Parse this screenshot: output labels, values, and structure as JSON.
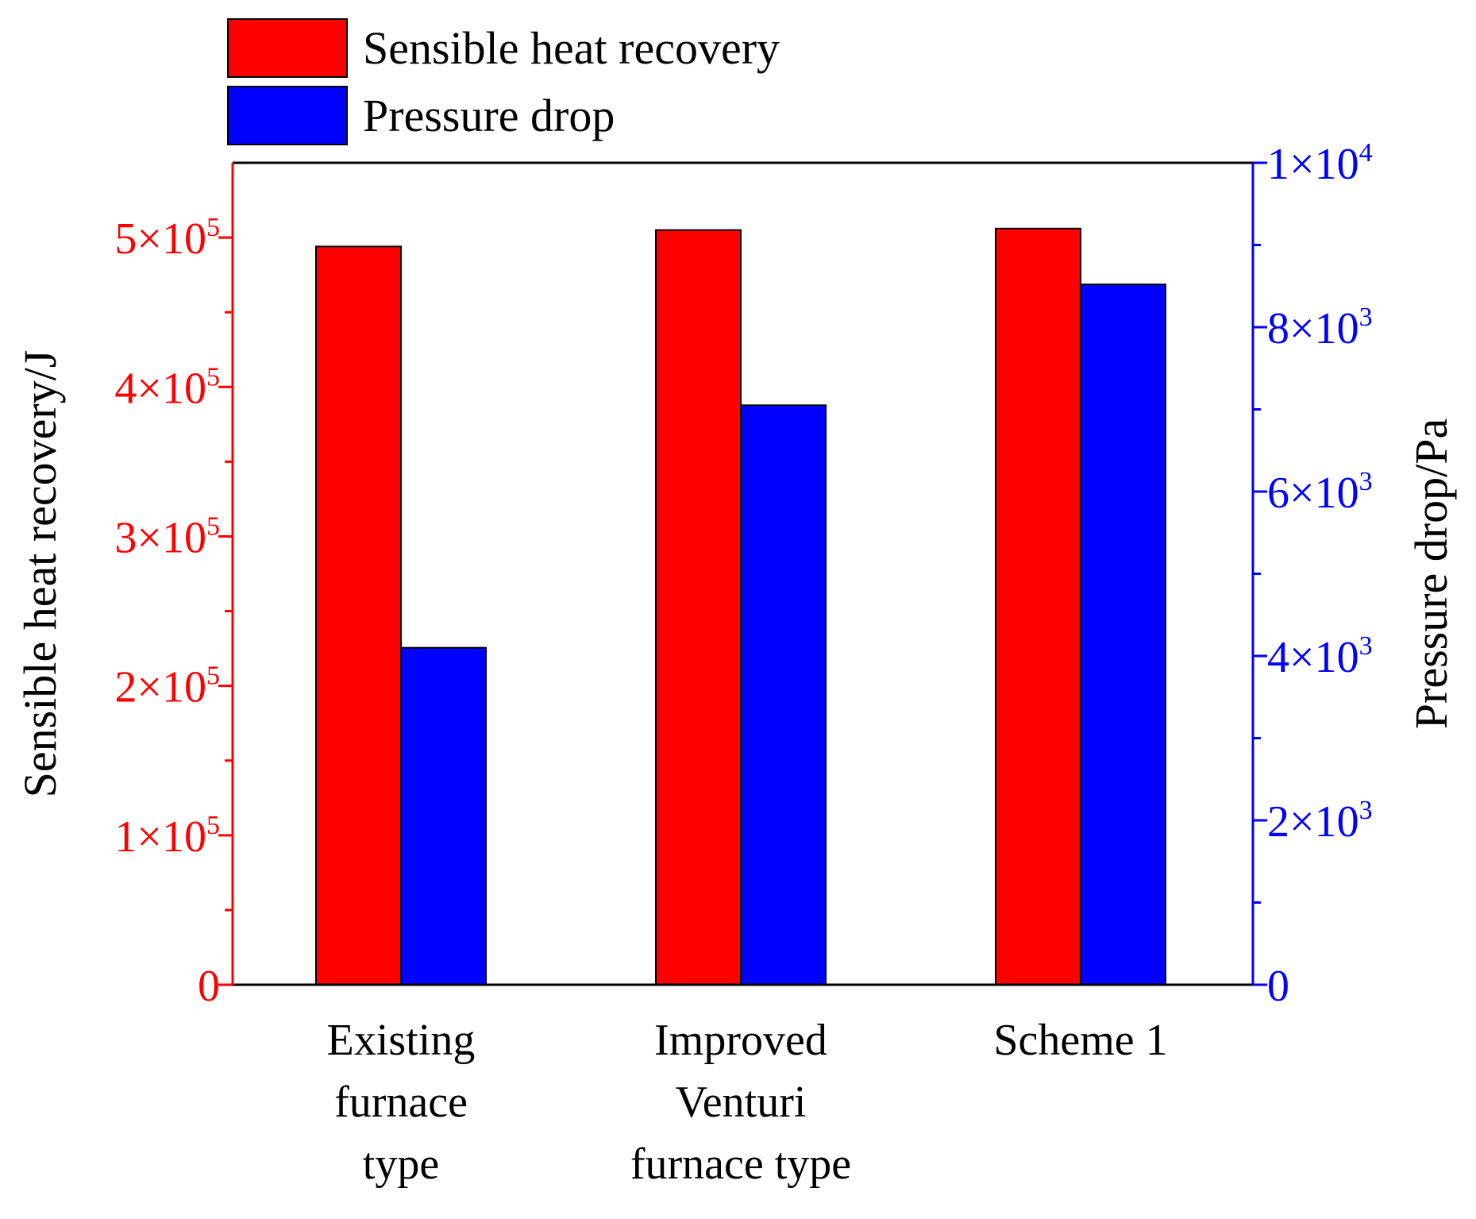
{
  "chart_data": {
    "type": "bar",
    "title": "",
    "categories": [
      [
        "Existing",
        "furnace",
        "type"
      ],
      [
        "Improved",
        "Venturi",
        "furnace type"
      ],
      [
        "Scheme 1"
      ]
    ],
    "series": [
      {
        "name": "Sensible heat recovery",
        "axis": "left",
        "color": "#ff0000",
        "values": [
          494000,
          505000,
          506000
        ]
      },
      {
        "name": "Pressure drop",
        "axis": "right",
        "color": "#0000ff",
        "values": [
          4100,
          7050,
          8520
        ]
      }
    ],
    "ylabel_left": "Sensible heat recovery/J",
    "ylabel_right": "Pressure drop/Pa",
    "ylim_left": [
      0,
      550000
    ],
    "ylim_right": [
      0,
      10000
    ],
    "left_ticks": [
      {
        "value": 0,
        "mant": "0",
        "exp": ""
      },
      {
        "value": 100000,
        "mant": "1×10",
        "exp": "5"
      },
      {
        "value": 200000,
        "mant": "2×10",
        "exp": "5"
      },
      {
        "value": 300000,
        "mant": "3×10",
        "exp": "5"
      },
      {
        "value": 400000,
        "mant": "4×10",
        "exp": "5"
      },
      {
        "value": 500000,
        "mant": "5×10",
        "exp": "5"
      }
    ],
    "left_minor_ticks": [
      50000,
      150000,
      250000,
      350000,
      450000
    ],
    "right_ticks": [
      {
        "value": 0,
        "mant": "0",
        "exp": ""
      },
      {
        "value": 2000,
        "mant": "2×10",
        "exp": "3"
      },
      {
        "value": 4000,
        "mant": "4×10",
        "exp": "3"
      },
      {
        "value": 6000,
        "mant": "6×10",
        "exp": "3"
      },
      {
        "value": 8000,
        "mant": "8×10",
        "exp": "3"
      },
      {
        "value": 10000,
        "mant": "1×10",
        "exp": "4"
      }
    ],
    "right_minor_ticks": [
      1000,
      3000,
      5000,
      7000,
      9000
    ],
    "left_axis_color": "#ff0000",
    "right_axis_color": "#0000ff",
    "grid": false,
    "legend_position": "top-left, above plot"
  }
}
